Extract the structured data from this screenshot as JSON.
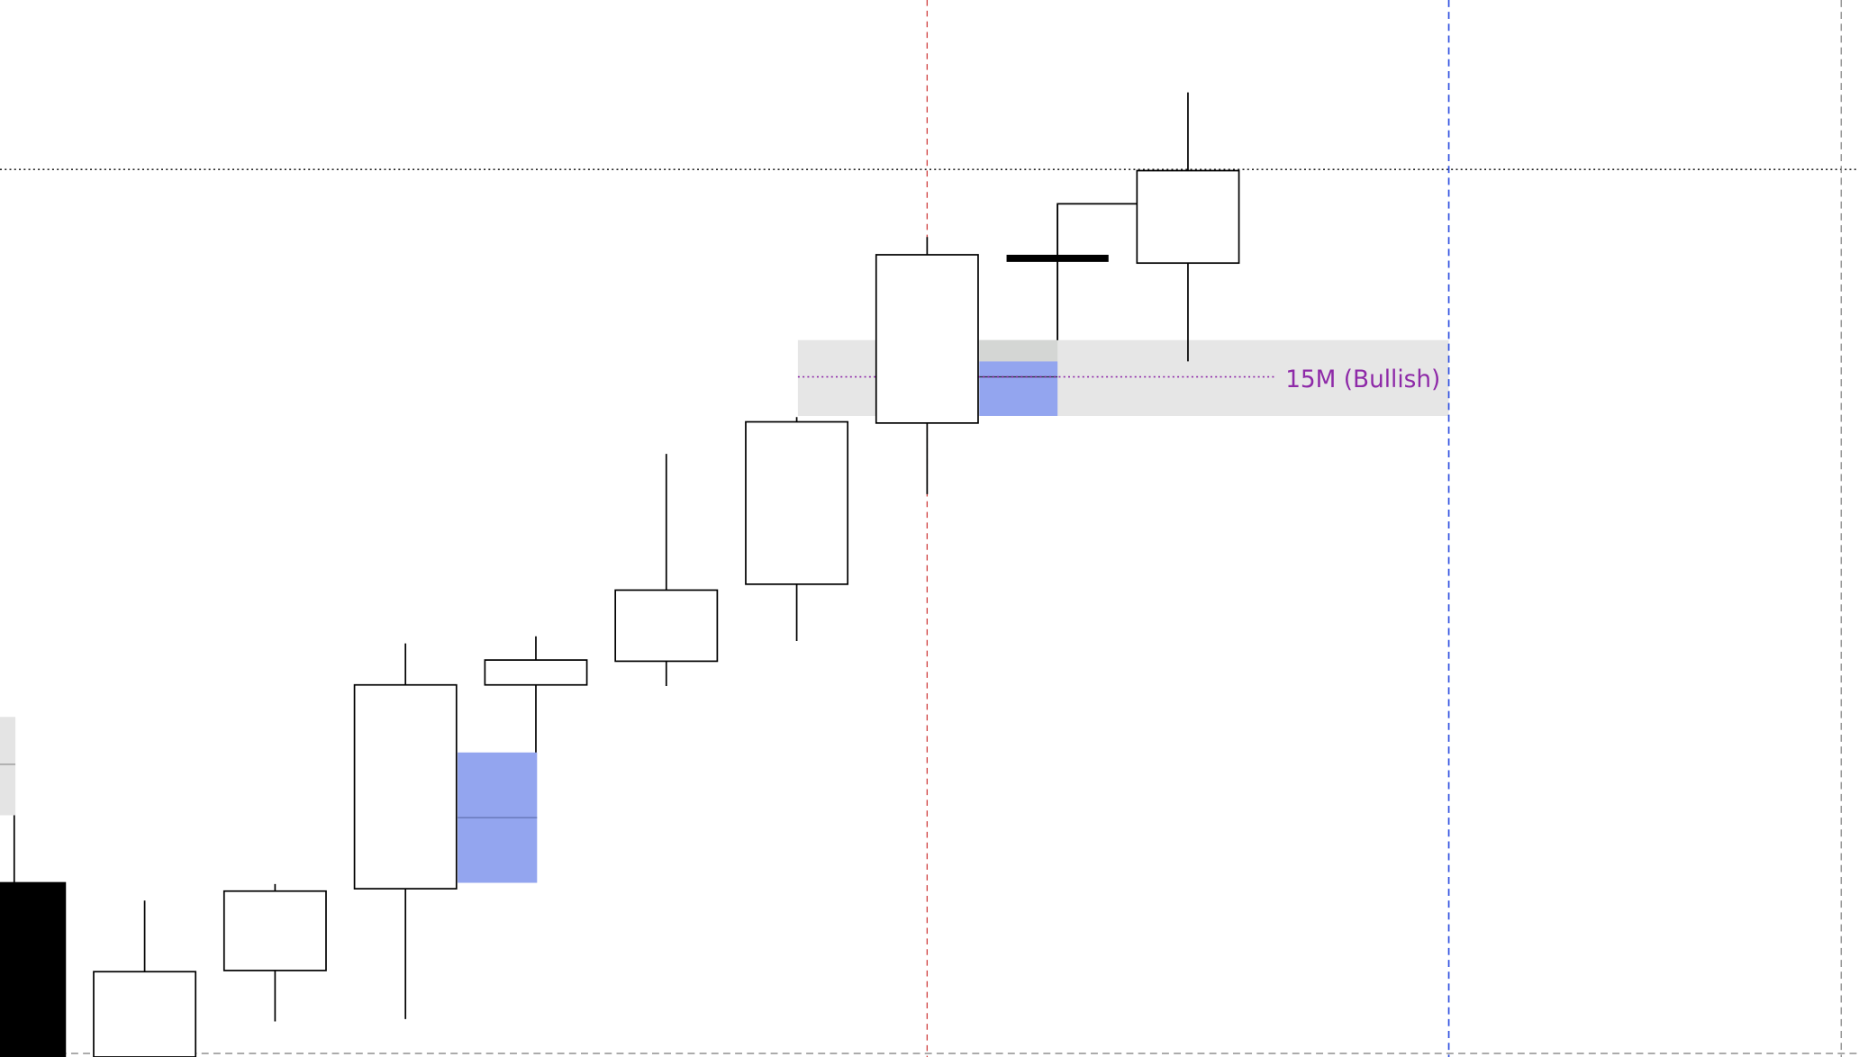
{
  "chart_data": {
    "type": "candlestick",
    "open": [
      147,
      0,
      73,
      142,
      314,
      334,
      399,
      535,
      674,
      670
    ],
    "high": [
      204,
      132,
      146,
      349,
      355,
      509,
      540,
      692,
      720,
      814
    ],
    "low": [
      0,
      0,
      30,
      32,
      257,
      313,
      351,
      475,
      605,
      587
    ],
    "close": [
      0,
      72,
      140,
      314,
      335,
      394,
      536,
      677,
      674,
      748
    ],
    "ylim": [
      0,
      892
    ],
    "up_color": "#ffffff",
    "down_color": "#000000",
    "annotation": "15M (Bullish)",
    "annotation_color": "#8e2aa8"
  }
}
